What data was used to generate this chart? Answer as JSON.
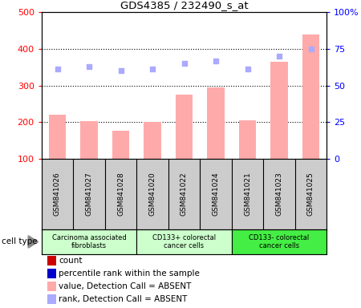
{
  "title": "GDS4385 / 232490_s_at",
  "samples": [
    "GSM841026",
    "GSM841027",
    "GSM841028",
    "GSM841020",
    "GSM841022",
    "GSM841024",
    "GSM841021",
    "GSM841023",
    "GSM841025"
  ],
  "bar_values": [
    220,
    203,
    176,
    200,
    275,
    295,
    204,
    365,
    440
  ],
  "dot_values": [
    61,
    63,
    60,
    61,
    65,
    67,
    61,
    70,
    75
  ],
  "cell_type_colors": [
    "#ccffcc",
    "#ccffcc",
    "#44ee44"
  ],
  "cell_type_labels": [
    "Carcinoma associated\nfibroblasts",
    "CD133+ colorectal\ncancer cells",
    "CD133- colorectal\ncancer cells"
  ],
  "cell_type_ranges": [
    [
      0,
      3
    ],
    [
      3,
      6
    ],
    [
      6,
      9
    ]
  ],
  "bar_color": "#ffaaaa",
  "dot_color": "#aaaaff",
  "ylim_left": [
    100,
    500
  ],
  "ylim_right": [
    0,
    100
  ],
  "yticks_left": [
    100,
    200,
    300,
    400,
    500
  ],
  "ytick_labels_left": [
    "100",
    "200",
    "300",
    "400",
    "500"
  ],
  "yticks_right": [
    0,
    25,
    50,
    75,
    100
  ],
  "ytick_labels_right": [
    "0",
    "25",
    "50",
    "75",
    "100%"
  ],
  "background_color": "#ffffff",
  "sample_bg_color": "#cccccc",
  "legend_colors": [
    "#cc0000",
    "#0000cc",
    "#ffaaaa",
    "#aaaaff"
  ],
  "legend_labels": [
    "count",
    "percentile rank within the sample",
    "value, Detection Call = ABSENT",
    "rank, Detection Call = ABSENT"
  ]
}
